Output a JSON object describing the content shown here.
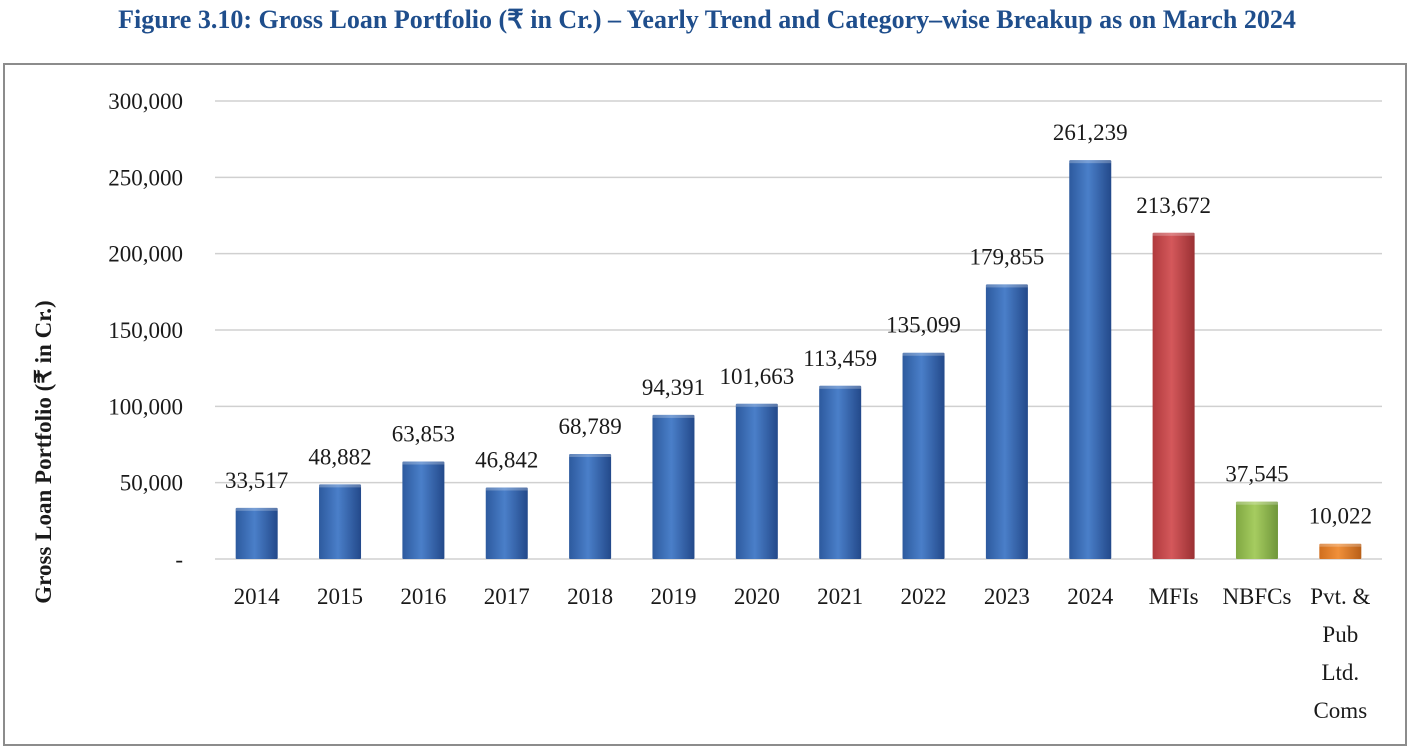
{
  "figure": {
    "title": "Figure 3.10: Gross Loan Portfolio (₹ in Cr.) – Yearly Trend and Category–wise Breakup as on March 2024"
  },
  "chart_data": {
    "type": "bar",
    "title": "",
    "xlabel": "",
    "ylabel": "Gross Loan Portfolio (₹ in Cr.)",
    "ylim": [
      0,
      300000
    ],
    "yticks": [
      0,
      50000,
      100000,
      150000,
      200000,
      250000,
      300000
    ],
    "ytick_labels": [
      "-",
      "50,000",
      "100,000",
      "150,000",
      "200,000",
      "250,000",
      "300,000"
    ],
    "grid": true,
    "legend": "none",
    "categories": [
      "2014",
      "2015",
      "2016",
      "2017",
      "2018",
      "2019",
      "2020",
      "2021",
      "2022",
      "2023",
      "2024",
      "MFIs",
      "NBFCs",
      "Pvt. & Pub Ltd. Coms"
    ],
    "category_lines": [
      [
        "2014"
      ],
      [
        "2015"
      ],
      [
        "2016"
      ],
      [
        "2017"
      ],
      [
        "2018"
      ],
      [
        "2019"
      ],
      [
        "2020"
      ],
      [
        "2021"
      ],
      [
        "2022"
      ],
      [
        "2023"
      ],
      [
        "2024"
      ],
      [
        "MFIs"
      ],
      [
        "NBFCs"
      ],
      [
        "Pvt. &",
        "Pub",
        "Ltd.",
        "Coms"
      ]
    ],
    "values": [
      33517,
      48882,
      63853,
      46842,
      68789,
      94391,
      101663,
      113459,
      135099,
      179855,
      261239,
      213672,
      37545,
      10022
    ],
    "data_labels": [
      "33,517",
      "48,882",
      "63,853",
      "46,842",
      "68,789",
      "94,391",
      "101,663",
      "113,459",
      "135,099",
      "179,855",
      "261,239",
      "213,672",
      "37,545",
      "10,022"
    ],
    "bar_colors": [
      "#3a6bb8",
      "#3a6bb8",
      "#3a6bb8",
      "#3a6bb8",
      "#3a6bb8",
      "#3a6bb8",
      "#3a6bb8",
      "#3a6bb8",
      "#3a6bb8",
      "#3a6bb8",
      "#3a6bb8",
      "#c0474a",
      "#92b94e",
      "#e07e2a"
    ],
    "gridline_color": "#d0d0d0"
  }
}
